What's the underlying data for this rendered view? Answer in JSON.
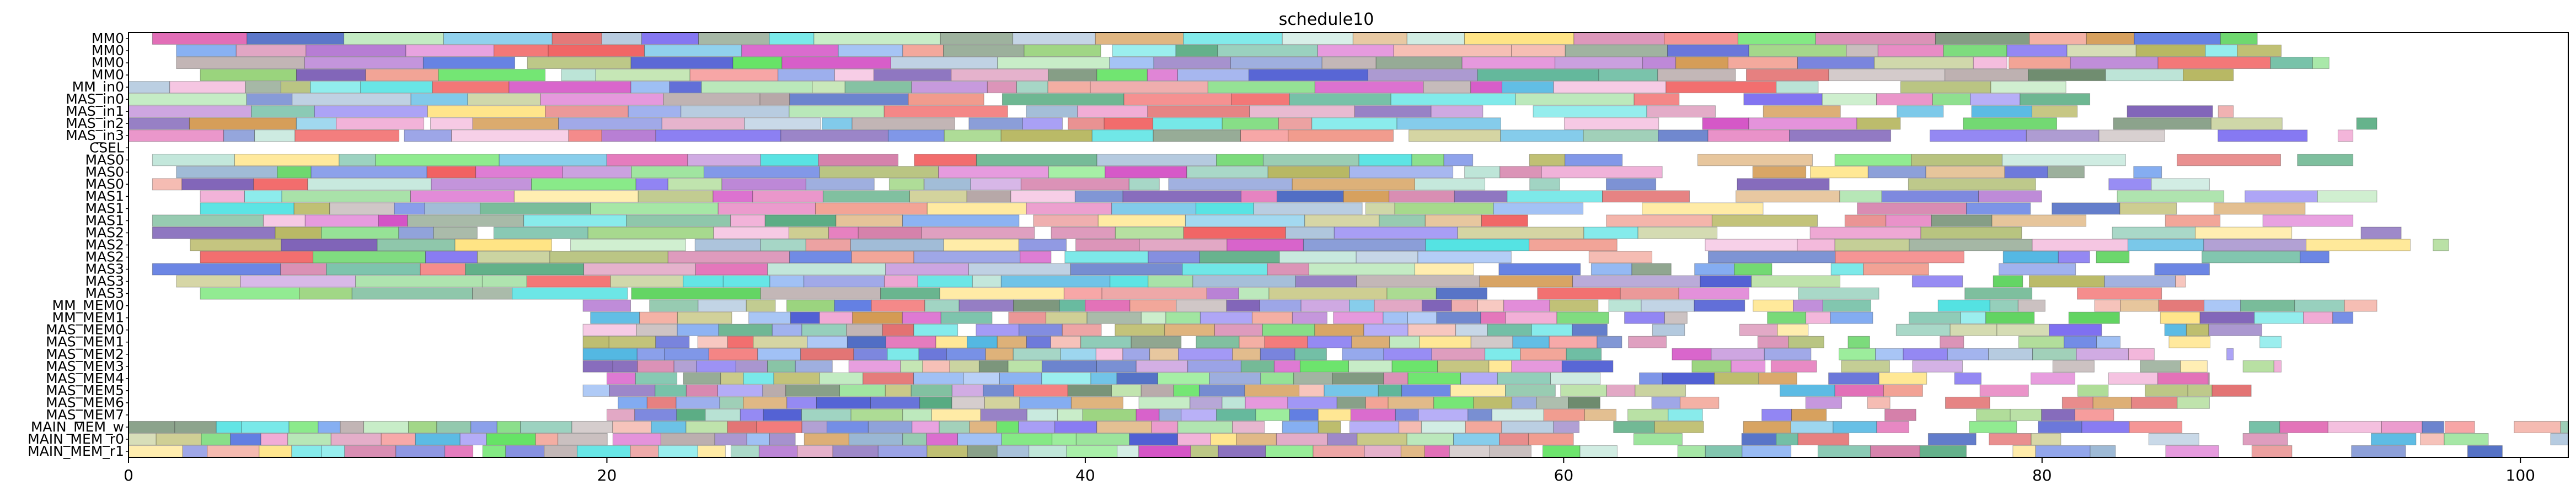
{
  "chart_data": {
    "type": "gantt",
    "title": "schedule10",
    "xlabel": "",
    "ylabel": "",
    "xlim": [
      0,
      102
    ],
    "x_ticks": [
      0,
      20,
      40,
      60,
      80,
      100
    ],
    "x_tick_labels": [
      "0",
      "20",
      "40",
      "60",
      "80",
      "100"
    ],
    "grid": false,
    "legend": "none",
    "rows": [
      "MM0",
      "MM0",
      "MM0",
      "MM0",
      "MM_in0",
      "MAS_in0",
      "MAS_in1",
      "MAS_in2",
      "MAS_in3",
      "CSEL",
      "MAS0",
      "MAS0",
      "MAS0",
      "MAS1",
      "MAS1",
      "MAS1",
      "MAS2",
      "MAS2",
      "MAS2",
      "MAS3",
      "MAS3",
      "MAS3",
      "MM_MEM0",
      "MM_MEM1",
      "MAS_MEM0",
      "MAS_MEM1",
      "MAS_MEM2",
      "MAS_MEM3",
      "MAS_MEM4",
      "MAS_MEM5",
      "MAS_MEM6",
      "MAS_MEM7",
      "MAIN_MEM_w",
      "MAIN_MEM_r0",
      "MAIN_MEM_r1"
    ],
    "row_spans": [
      [
        1,
        89
      ],
      [
        2,
        90
      ],
      [
        2,
        92
      ],
      [
        3,
        88
      ],
      [
        0,
        81
      ],
      [
        0,
        82
      ],
      [
        0,
        88
      ],
      [
        0,
        94
      ],
      [
        0,
        93
      ],
      [
        null,
        null
      ],
      [
        1,
        93
      ],
      [
        2,
        85
      ],
      [
        1,
        87
      ],
      [
        3,
        94
      ],
      [
        3,
        91
      ],
      [
        1,
        93
      ],
      [
        1,
        97
      ],
      [
        2,
        97
      ],
      [
        3,
        92
      ],
      [
        1,
        87
      ],
      [
        2,
        86
      ],
      [
        3,
        85
      ],
      [
        19,
        94
      ],
      [
        19,
        93
      ],
      [
        19,
        91
      ],
      [
        19,
        90
      ],
      [
        19,
        88
      ],
      [
        19,
        90
      ],
      [
        20,
        87
      ],
      [
        19,
        90
      ],
      [
        20,
        87
      ],
      [
        20,
        83
      ],
      [
        0,
        102
      ],
      [
        0,
        102
      ],
      [
        0,
        102
      ]
    ],
    "palette": [
      "#cc6699",
      "#6644aa",
      "#4466dd",
      "#339966",
      "#88cc66",
      "#3355bb",
      "#44dd44",
      "#6699ee",
      "#aab866",
      "#cc33bb",
      "#44aa88",
      "#33dddd",
      "#aaddcc",
      "#44cc44",
      "#aa9999",
      "#3344cc",
      "#ffdd66",
      "#33aadd",
      "#dd55aa",
      "#ee4444",
      "#cc8833",
      "#88aacc",
      "#99dd99",
      "#aa66cc",
      "#557755",
      "#ee99cc",
      "#dd5555",
      "#6655ee",
      "#aaaa44",
      "#ee8877"
    ]
  }
}
